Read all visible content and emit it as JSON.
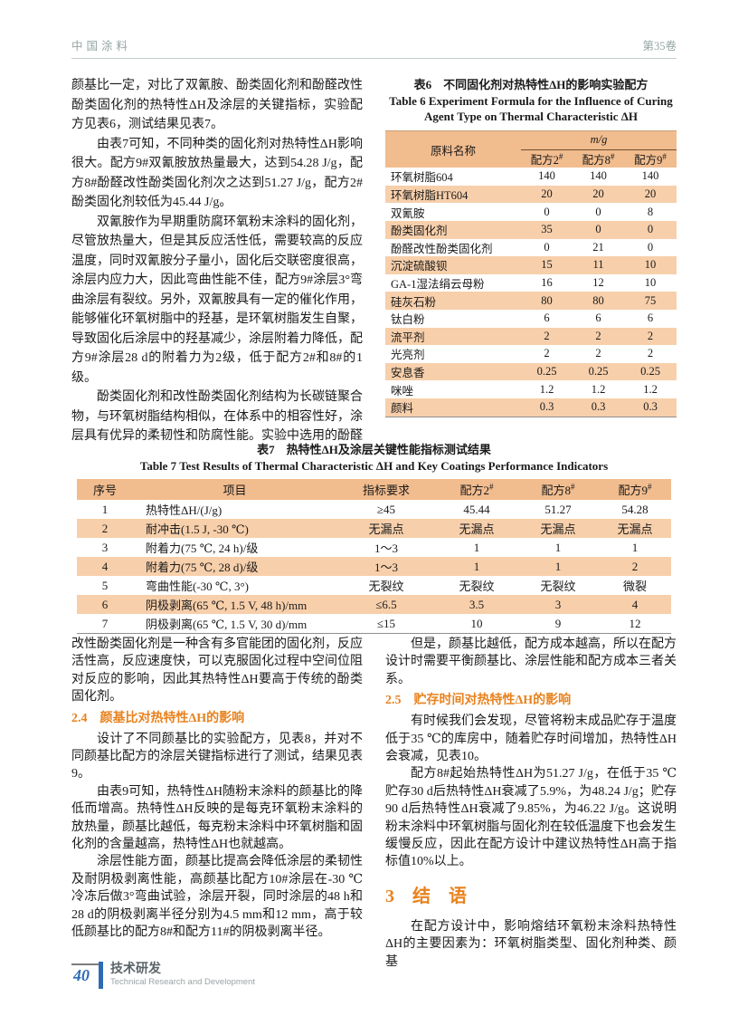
{
  "header": {
    "journal": "中国涂料",
    "volume": "第35卷"
  },
  "left_top": {
    "p1": "颜基比一定，对比了双氰胺、酚类固化剂和酚醛改性酚类固化剂的热特性ΔH及涂层的关键指标，实验配方见表6，测试结果见表7。",
    "p2": "由表7可知，不同种类的固化剂对热特性ΔH影响很大。配方9#双氰胺放热量最大，达到54.28 J/g，配方8#酚醛改性酚类固化剂次之达到51.27 J/g，配方2#酚类固化剂较低为45.44 J/g。",
    "p3": "双氰胺作为早期重防腐环氧粉末涂料的固化剂，尽管放热量大，但是其反应活性低，需要较高的反应温度，同时双氰胺分子量小，固化后交联密度很高，涂层内应力大，因此弯曲性能不佳，配方9#涂层3°弯曲涂层有裂纹。另外，双氰胺具有一定的催化作用，能够催化环氧树脂中的羟基，是环氧树脂发生自聚，导致固化后涂层中的羟基减少，涂层附着力降低，配方9#涂层28 d的附着力为2级，低于配方2#和8#的1级。",
    "p4": "酚类固化剂和改性酚类固化剂结构为长碳链聚合物，与环氧树脂结构相似，在体系中的相容性好，涂层具有优异的柔韧性和防腐性能。实验中选用的酚醛"
  },
  "table6": {
    "title_cn": "表6　不同固化剂对热特性ΔH的影响实验配方",
    "title_en1": "Table 6   Experiment Formula for the Influence of Curing",
    "title_en2": "Agent Type on Thermal Characteristic ΔH",
    "col_material": "原料名称",
    "col_group": "m/g",
    "col_formulas": [
      "配方2#",
      "配方8#",
      "配方9#"
    ],
    "rows": [
      {
        "name": "环氧树脂604",
        "values": [
          "140",
          "140",
          "140"
        ]
      },
      {
        "name": "环氧树脂HT604",
        "values": [
          "20",
          "20",
          "20"
        ]
      },
      {
        "name": "双氰胺",
        "values": [
          "0",
          "0",
          "8"
        ]
      },
      {
        "name": "酚类固化剂",
        "values": [
          "35",
          "0",
          "0"
        ]
      },
      {
        "name": "酚醛改性酚类固化剂",
        "values": [
          "0",
          "21",
          "0"
        ]
      },
      {
        "name": "沉淀硫酸钡",
        "values": [
          "15",
          "11",
          "10"
        ]
      },
      {
        "name": "GA-1湿法绢云母粉",
        "values": [
          "16",
          "12",
          "10"
        ]
      },
      {
        "name": "硅灰石粉",
        "values": [
          "80",
          "80",
          "75"
        ]
      },
      {
        "name": "钛白粉",
        "values": [
          "6",
          "6",
          "6"
        ]
      },
      {
        "name": "流平剂",
        "values": [
          "2",
          "2",
          "2"
        ]
      },
      {
        "name": "光亮剂",
        "values": [
          "2",
          "2",
          "2"
        ]
      },
      {
        "name": "安息香",
        "values": [
          "0.25",
          "0.25",
          "0.25"
        ]
      },
      {
        "name": "咪唑",
        "values": [
          "1.2",
          "1.2",
          "1.2"
        ]
      },
      {
        "name": "颜料",
        "values": [
          "0.3",
          "0.3",
          "0.3"
        ]
      }
    ]
  },
  "table7": {
    "title_cn": "表7　热特性ΔH及涂层关键性能指标测试结果",
    "title_en": "Table 7   Test Results of Thermal Characteristic ΔH and Key Coatings Performance Indicators",
    "headers": [
      "序号",
      "项目",
      "指标要求",
      "配方2#",
      "配方8#",
      "配方9#"
    ],
    "rows": [
      [
        "1",
        "热特性ΔH/(J/g)",
        "≥45",
        "45.44",
        "51.27",
        "54.28"
      ],
      [
        "2",
        "耐冲击(1.5 J, -30 ℃)",
        "无漏点",
        "无漏点",
        "无漏点",
        "无漏点"
      ],
      [
        "3",
        "附着力(75 ℃, 24 h)/级",
        "1～3",
        "1",
        "1",
        "1"
      ],
      [
        "4",
        "附着力(75 ℃, 28 d)/级",
        "1～3",
        "1",
        "1",
        "2"
      ],
      [
        "5",
        "弯曲性能(-30 ℃, 3°)",
        "无裂纹",
        "无裂纹",
        "无裂纹",
        "微裂"
      ],
      [
        "6",
        "阴极剥离(65 ℃, 1.5 V, 48 h)/mm",
        "≤6.5",
        "3.5",
        "3",
        "4"
      ],
      [
        "7",
        "阴极剥离(65 ℃, 1.5 V, 30 d)/mm",
        "≤15",
        "10",
        "9",
        "12"
      ]
    ]
  },
  "left_bottom": {
    "p5": "改性酚类固化剂是一种含有多官能团的固化剂，反应活性高，反应速度快，可以克服固化过程中空间位阻对反应的影响，因此其热特性ΔH要高于传统的酚类固化剂。",
    "h24": "2.4　颜基比对热特性ΔH的影响",
    "p6": "设计了不同颜基比的实验配方，见表8，并对不同颜基比配方的涂层关键指标进行了测试，结果见表9。",
    "p7": "由表9可知，热特性ΔH随粉末涂料的颜基比的降低而增高。热特性ΔH反映的是每克环氧粉末涂料的放热量，颜基比越低，每克粉末涂料中环氧树脂和固化剂的含量越高，热特性ΔH也就越高。",
    "p8": "涂层性能方面，颜基比提高会降低涂层的柔韧性及耐阴极剥离性能，高颜基比配方10#涂层在-30 ℃冷冻后做3°弯曲试验，涂层开裂，同时涂层的48 h和28 d的阴极剥离半径分别为4.5 mm和12 mm，高于较低颜基比的配方8#和配方11#的阴极剥离半径。"
  },
  "right_bottom": {
    "p9": "但是，颜基比越低，配方成本越高，所以在配方设计时需要平衡颜基比、涂层性能和配方成本三者关系。",
    "h25": "2.5　贮存时间对热特性ΔH的影响",
    "p10": "有时候我们会发现，尽管将粉末成品贮存于温度低于35 ℃的库房中，随着贮存时间增加，热特性ΔH会衰减，见表10。",
    "p11": "配方8#起始热特性ΔH为51.27 J/g，在低于35 ℃贮存30 d后热特性ΔH衰减了5.9%，为48.24 J/g；贮存90 d后热特性ΔH衰减了9.85%，为46.22 J/g。这说明粉末涂料中环氧树脂与固化剂在较低温度下也会发生缓慢反应，因此在配方设计中建议热特性ΔH高于指标值10%以上。",
    "h3": "3　结　语",
    "p12": "在配方设计中，影响熔结环氧粉末涂料热特性ΔH的主要因素为：环氧树脂类型、固化剂种类、颜基"
  },
  "footer": {
    "page_number": "40",
    "section_cn": "技术研发",
    "section_en": "Technical Research and Development"
  },
  "colors": {
    "table_header_bg": "#f1bc8e",
    "table_stripe_bg": "#f7cfab",
    "accent_orange": "#e8821e",
    "footer_blue": "#2f6bb5",
    "running_head_gray": "#95a4a4"
  }
}
